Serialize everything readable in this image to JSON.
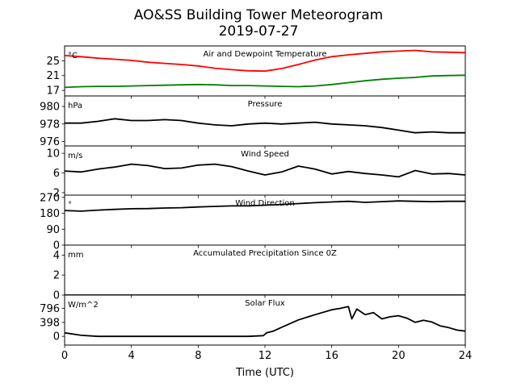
{
  "chart_data": {
    "type": "line",
    "title": "AO&SS Building Tower Meteorogram",
    "subtitle": "2019-07-27",
    "xlabel": "Time (UTC)",
    "xlim": [
      0,
      24
    ],
    "xticks": [
      "0",
      "4",
      "8",
      "12",
      "16",
      "20",
      "24"
    ],
    "grid": false,
    "panels": [
      {
        "title": "Air and Dewpoint Temperature",
        "unit": "°C",
        "ylim": [
          15.5,
          29
        ],
        "yticks": [
          "17",
          "21",
          "25"
        ],
        "series": [
          {
            "color": "#ff0000",
            "x": [
              0,
              1,
              2,
              3,
              4,
              5,
              6,
              7,
              8,
              9,
              10,
              11,
              12,
              13,
              14,
              15,
              16,
              17,
              18,
              19,
              20,
              21,
              22,
              23,
              24
            ],
            "y": [
              26.4,
              26.1,
              25.7,
              25.4,
              25.1,
              24.6,
              24.3,
              24.0,
              23.6,
              23.0,
              22.6,
              22.3,
              22.2,
              22.9,
              24.0,
              25.2,
              26.1,
              26.6,
              27.0,
              27.4,
              27.6,
              27.8,
              27.4,
              27.3,
              27.2
            ]
          },
          {
            "color": "#008000",
            "x": [
              0,
              1,
              2,
              3,
              4,
              5,
              6,
              7,
              8,
              9,
              10,
              11,
              12,
              13,
              14,
              15,
              16,
              17,
              18,
              19,
              20,
              21,
              22,
              23,
              24
            ],
            "y": [
              17.8,
              18.0,
              18.1,
              18.1,
              18.2,
              18.3,
              18.4,
              18.5,
              18.6,
              18.5,
              18.3,
              18.3,
              18.2,
              18.1,
              18.0,
              18.2,
              18.6,
              19.1,
              19.6,
              20.0,
              20.3,
              20.5,
              20.9,
              21.0,
              21.1
            ]
          }
        ]
      },
      {
        "title": "Pressure",
        "unit": "hPa",
        "ylim": [
          975.5,
          981.2
        ],
        "yticks": [
          "976",
          "978",
          "980"
        ],
        "series": [
          {
            "color": "#000000",
            "x": [
              0,
              1,
              2,
              3,
              4,
              5,
              6,
              7,
              8,
              9,
              10,
              11,
              12,
              13,
              14,
              15,
              16,
              17,
              18,
              19,
              20,
              21,
              22,
              23,
              24
            ],
            "y": [
              978.1,
              978.1,
              978.3,
              978.6,
              978.4,
              978.4,
              978.5,
              978.4,
              978.1,
              977.9,
              977.8,
              978.0,
              978.1,
              978.0,
              978.1,
              978.2,
              978.0,
              977.9,
              977.8,
              977.6,
              977.3,
              977.0,
              977.1,
              977.0,
              977.0
            ]
          }
        ]
      },
      {
        "title": "Wind Speed",
        "unit": "m/s",
        "ylim": [
          1.5,
          11.5
        ],
        "yticks": [
          "2",
          "6",
          "10"
        ],
        "series": [
          {
            "color": "#000000",
            "x": [
              0,
              1,
              2,
              3,
              4,
              5,
              6,
              7,
              8,
              9,
              10,
              11,
              12,
              13,
              14,
              15,
              16,
              17,
              18,
              19,
              20,
              21,
              22,
              23,
              24
            ],
            "y": [
              6.4,
              6.2,
              6.8,
              7.2,
              7.8,
              7.5,
              6.9,
              7.0,
              7.6,
              7.8,
              7.3,
              6.4,
              5.6,
              6.2,
              7.4,
              6.8,
              5.8,
              6.3,
              5.9,
              5.6,
              5.2,
              6.5,
              5.8,
              5.9,
              5.6
            ]
          }
        ]
      },
      {
        "title": "Wind Direction",
        "unit": "°",
        "ylim": [
          0,
          283
        ],
        "yticks": [
          "0",
          "90",
          "180",
          "270"
        ],
        "series": [
          {
            "color": "#000000",
            "x": [
              0,
              1,
              2,
              3,
              4,
              5,
              6,
              7,
              8,
              9,
              10,
              11,
              12,
              13,
              14,
              15,
              16,
              17,
              18,
              19,
              20,
              21,
              22,
              23,
              24
            ],
            "y": [
              196,
              192,
              198,
              202,
              206,
              207,
              210,
              212,
              216,
              219,
              222,
              222,
              226,
              230,
              235,
              240,
              244,
              248,
              242,
              246,
              250,
              248,
              246,
              248,
              248
            ]
          }
        ]
      },
      {
        "title": "Accumulated Precipitation Since 0Z",
        "unit": "mm",
        "ylim": [
          0,
          5
        ],
        "yticks": [
          "0",
          "2",
          "4"
        ],
        "series": [
          {
            "color": "#000000",
            "x": [
              0,
              24
            ],
            "y": [
              0,
              0
            ]
          }
        ]
      },
      {
        "title": "Solar Flux",
        "unit": "W/m^2",
        "ylim": [
          -250,
          1180
        ],
        "yticks": [
          "0",
          "398",
          "796"
        ],
        "series": [
          {
            "color": "#000000",
            "x": [
              0,
              1,
              2,
              3,
              4,
              5,
              6,
              7,
              8,
              9,
              10,
              11,
              11.9,
              12,
              12.1,
              12.5,
              13,
              14,
              15,
              16,
              16.5,
              17,
              17.2,
              17.5,
              18,
              18.5,
              19,
              19.5,
              20,
              20.5,
              21,
              21.5,
              22,
              22.5,
              23,
              23.5,
              24
            ],
            "y": [
              100,
              30,
              0,
              0,
              0,
              0,
              0,
              0,
              0,
              0,
              0,
              0,
              20,
              60,
              100,
              150,
              260,
              470,
              620,
              760,
              800,
              850,
              500,
              780,
              620,
              680,
              500,
              560,
              590,
              520,
              400,
              460,
              410,
              300,
              250,
              180,
              150
            ]
          }
        ]
      }
    ]
  }
}
